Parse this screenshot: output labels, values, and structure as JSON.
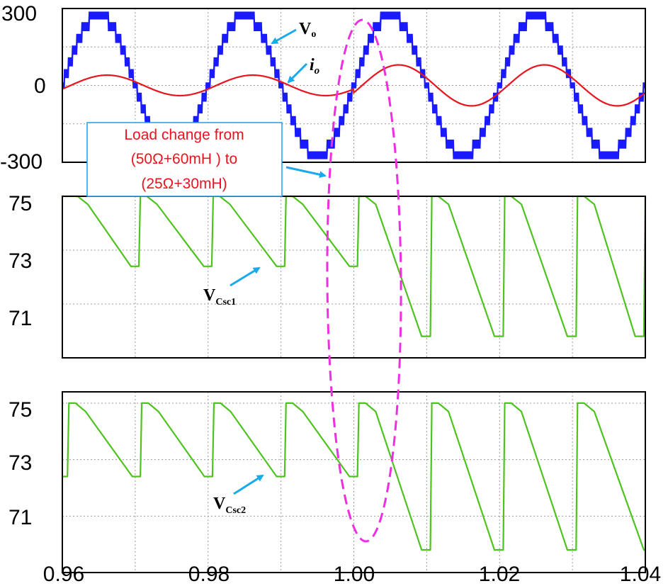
{
  "chart_data": [
    {
      "type": "line",
      "panel": "output",
      "xlim": [
        0.96,
        1.04
      ],
      "ylim": [
        -300,
        300
      ],
      "yticks": [
        "300",
        "0",
        "-300"
      ],
      "grid": true,
      "series": [
        {
          "name": "Vo",
          "label_main": "V",
          "label_sub": "o",
          "color": "#1a1aff",
          "kind": "13-level staircase",
          "frequency_hz": 50,
          "peak": 275,
          "switching_ripple_peak": 30,
          "phase_zero_crossing_rising_s": 0.96
        },
        {
          "name": "io",
          "label_main": "i",
          "label_sub": "o",
          "color": "#e8141e",
          "kind": "sinusoid",
          "frequency_hz": 50,
          "amplitude_before": 40,
          "amplitude_after": 80,
          "load_change_time_s": 1.0,
          "phase_lag_rad": 0.36
        }
      ]
    },
    {
      "type": "line",
      "panel": "Vcsc1",
      "xlim": [
        0.96,
        1.04
      ],
      "ylim": [
        69,
        75
      ],
      "yticks": [
        "75",
        "73",
        "71"
      ],
      "grid": true,
      "series": [
        {
          "name": "VCsc1",
          "label_main": "V",
          "label_sub": "Csc1",
          "color": "#4ec31f",
          "recharge_times_s": [
            0.961,
            0.9705,
            0.9805,
            0.9905,
            1.0005,
            1.0105,
            1.0205,
            1.0305,
            1.0398
          ],
          "max": 75,
          "min_before": 72.4,
          "min_after": 69.8
        }
      ]
    },
    {
      "type": "line",
      "panel": "Vcsc2",
      "xlim": [
        0.96,
        1.04
      ],
      "ylim": [
        69,
        75.4
      ],
      "yticks": [
        "75",
        "73",
        "71"
      ],
      "grid": true,
      "series": [
        {
          "name": "VCsc2",
          "label_main": "V",
          "label_sub": "Csc2",
          "color": "#4ec31f",
          "recharge_times_s": [
            0.9607,
            0.9707,
            0.9806,
            0.9905,
            1.0005,
            1.0105,
            1.0205,
            1.0305
          ],
          "max": 75,
          "min_before": 72.4,
          "min_after": 69.8
        }
      ]
    }
  ],
  "xticks": [
    "0.96",
    "0.98",
    "1.00",
    "1.02",
    "1.04"
  ],
  "annotation": {
    "line1": "Load change from",
    "line2": "(50Ω+60mH ) to",
    "line3": "(25Ω+30mH)",
    "color": "#e8141e",
    "box_border": "#1ea0e6",
    "ellipse_color": "#ee2ee0"
  },
  "colors": {
    "arrow": "#18aaeb",
    "grid": "#9a9a9a"
  }
}
